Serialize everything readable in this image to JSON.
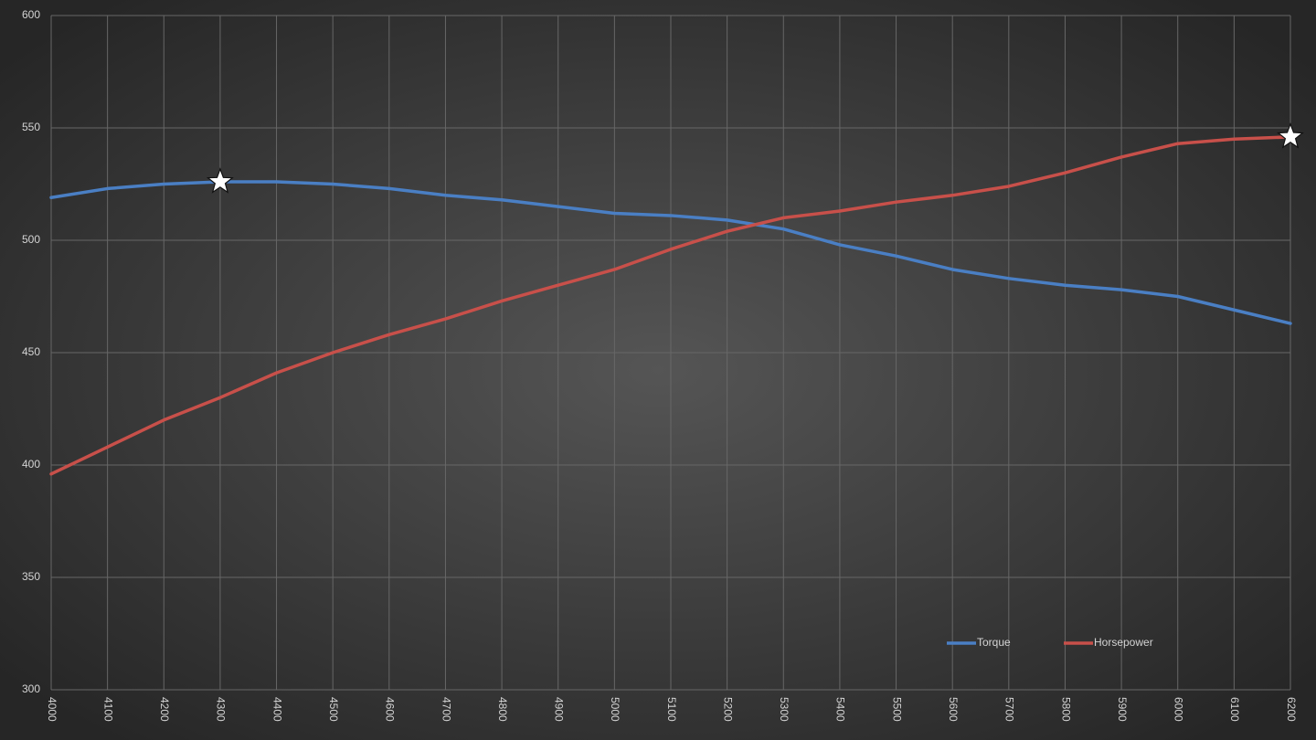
{
  "chart_data": {
    "type": "line",
    "x": [
      4000,
      4100,
      4200,
      4300,
      4400,
      4500,
      4600,
      4700,
      4800,
      4900,
      5000,
      5100,
      5200,
      5300,
      5400,
      5500,
      5600,
      5700,
      5800,
      5900,
      6000,
      6100,
      6200
    ],
    "series": [
      {
        "name": "Torque",
        "color": "#4a7fc4",
        "values": [
          519,
          523,
          525,
          526,
          526,
          525,
          523,
          520,
          518,
          515,
          512,
          511,
          509,
          505,
          498,
          493,
          487,
          483,
          480,
          478,
          475,
          469,
          463
        ]
      },
      {
        "name": "Horsepower",
        "color": "#c8504a",
        "values": [
          396,
          408,
          420,
          430,
          441,
          450,
          458,
          465,
          473,
          480,
          487,
          496,
          504,
          510,
          513,
          517,
          520,
          524,
          530,
          537,
          543,
          545,
          546
        ]
      }
    ],
    "xlim": [
      4000,
      6200
    ],
    "xticks": [
      4000,
      4100,
      4200,
      4300,
      4400,
      4500,
      4600,
      4700,
      4800,
      4900,
      5000,
      5100,
      5200,
      5300,
      5400,
      5500,
      5600,
      5700,
      5800,
      5900,
      6000,
      6100,
      6200
    ],
    "ylim": [
      300,
      600
    ],
    "yticks": [
      300,
      350,
      400,
      450,
      500,
      550,
      600
    ],
    "grid": true,
    "legend": "lower right",
    "star_markers": [
      {
        "series": 0,
        "index": 3
      },
      {
        "series": 1,
        "index": 22
      }
    ]
  }
}
